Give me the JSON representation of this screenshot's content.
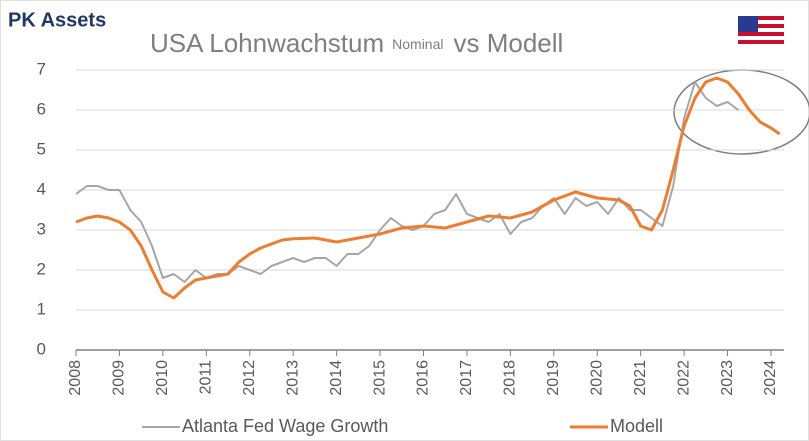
{
  "brand": "PK Assets",
  "chart_data": {
    "type": "line",
    "title": "USA Lohnwachstum",
    "title_note": "Nominal",
    "title_end": "vs  Modell",
    "xlim": [
      2008,
      2024.3
    ],
    "xticks": [
      2008,
      2009,
      2010,
      2011,
      2012,
      2013,
      2014,
      2015,
      2016,
      2017,
      2018,
      2019,
      2020,
      2021,
      2022,
      2023,
      2024
    ],
    "ylim": [
      0,
      7
    ],
    "yticks": [
      0,
      1,
      2,
      3,
      4,
      5,
      6,
      7
    ],
    "grid": true,
    "series": [
      {
        "name": "Atlanta Fed Wage Growth",
        "color": "#a6a6a6",
        "x": [
          2008,
          2008.25,
          2008.5,
          2008.75,
          2009,
          2009.25,
          2009.5,
          2009.75,
          2010,
          2010.25,
          2010.5,
          2010.75,
          2011,
          2011.25,
          2011.5,
          2011.75,
          2012,
          2012.25,
          2012.5,
          2012.75,
          2013,
          2013.25,
          2013.5,
          2013.75,
          2014,
          2014.25,
          2014.5,
          2014.75,
          2015,
          2015.25,
          2015.5,
          2015.75,
          2016,
          2016.25,
          2016.5,
          2016.75,
          2017,
          2017.25,
          2017.5,
          2017.75,
          2018,
          2018.25,
          2018.5,
          2018.75,
          2019,
          2019.25,
          2019.5,
          2019.75,
          2020,
          2020.25,
          2020.5,
          2020.75,
          2021,
          2021.25,
          2021.5,
          2021.75,
          2022,
          2022.25,
          2022.5,
          2022.75,
          2023,
          2023.25
        ],
        "values": [
          3.9,
          4.1,
          4.1,
          4.0,
          4.0,
          3.5,
          3.2,
          2.6,
          1.8,
          1.9,
          1.7,
          2.0,
          1.8,
          1.9,
          1.9,
          2.1,
          2.0,
          1.9,
          2.1,
          2.2,
          2.3,
          2.2,
          2.3,
          2.3,
          2.1,
          2.4,
          2.4,
          2.6,
          3.0,
          3.3,
          3.1,
          3.0,
          3.1,
          3.4,
          3.5,
          3.9,
          3.4,
          3.3,
          3.2,
          3.4,
          2.9,
          3.2,
          3.3,
          3.6,
          3.8,
          3.4,
          3.8,
          3.6,
          3.7,
          3.4,
          3.8,
          3.5,
          3.5,
          3.3,
          3.1,
          4.1,
          5.8,
          6.7,
          6.3,
          6.1,
          6.2,
          6.0
        ]
      },
      {
        "name": "Modell",
        "color": "#ed7d31",
        "x": [
          2008,
          2008.25,
          2008.5,
          2008.75,
          2009,
          2009.25,
          2009.5,
          2009.75,
          2010,
          2010.25,
          2010.5,
          2010.75,
          2011,
          2011.25,
          2011.5,
          2011.75,
          2012,
          2012.25,
          2012.5,
          2012.75,
          2013,
          2013.5,
          2014,
          2014.5,
          2015,
          2015.5,
          2016,
          2016.5,
          2017,
          2017.5,
          2018,
          2018.5,
          2019,
          2019.5,
          2020,
          2020.5,
          2020.75,
          2021,
          2021.25,
          2021.5,
          2021.75,
          2022,
          2022.25,
          2022.5,
          2022.75,
          2023,
          2023.25,
          2023.5,
          2023.75,
          2024,
          2024.2
        ],
        "values": [
          3.2,
          3.3,
          3.35,
          3.3,
          3.2,
          3.0,
          2.6,
          2.0,
          1.45,
          1.3,
          1.55,
          1.75,
          1.8,
          1.85,
          1.9,
          2.2,
          2.4,
          2.55,
          2.65,
          2.75,
          2.78,
          2.8,
          2.7,
          2.8,
          2.9,
          3.05,
          3.1,
          3.05,
          3.2,
          3.35,
          3.3,
          3.45,
          3.75,
          3.95,
          3.8,
          3.75,
          3.6,
          3.1,
          3.0,
          3.5,
          4.5,
          5.6,
          6.3,
          6.7,
          6.8,
          6.7,
          6.4,
          6.0,
          5.7,
          5.55,
          5.4
        ]
      }
    ]
  }
}
